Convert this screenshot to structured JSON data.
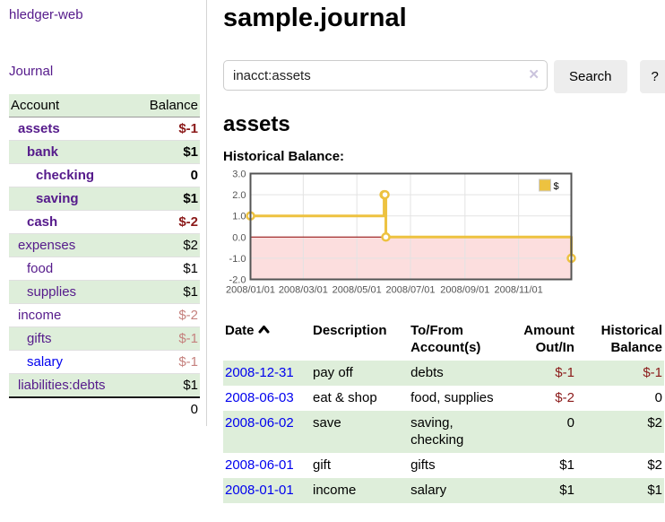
{
  "app": {
    "title": "hledger-web"
  },
  "colors": {
    "link_purple": "#551a8b",
    "link_blue": "#0000ee",
    "negative": "#8b1a1a",
    "muted_negative": "#c5817e",
    "row_stripe_green": "#deeeda"
  },
  "sidebar": {
    "nav": {
      "journal_label": "Journal"
    },
    "accounts": {
      "headers": {
        "account": "Account",
        "balance": "Balance"
      },
      "rows": [
        {
          "name": "assets",
          "level": 0,
          "balance": "$-1"
        },
        {
          "name": "bank",
          "level": 1,
          "balance": "$1"
        },
        {
          "name": "checking",
          "level": 2,
          "balance": "0"
        },
        {
          "name": "saving",
          "level": 2,
          "balance": "$1"
        },
        {
          "name": "cash",
          "level": 1,
          "balance": "$-2"
        },
        {
          "name": "expenses",
          "level": 0,
          "balance": "$2"
        },
        {
          "name": "food",
          "level": 1,
          "balance": "$1"
        },
        {
          "name": "supplies",
          "level": 1,
          "balance": "$1"
        },
        {
          "name": "income",
          "level": 0,
          "balance": "$-2"
        },
        {
          "name": "gifts",
          "level": 1,
          "balance": "$-1"
        },
        {
          "name": "salary",
          "level": 1,
          "balance": "$-1"
        },
        {
          "name": "liabilities:debts",
          "level": 0,
          "balance": "$1"
        }
      ],
      "total": "0"
    }
  },
  "main": {
    "title": "sample.journal",
    "search": {
      "value": "inacct:assets",
      "clear_icon": "✕",
      "button_label": "Search",
      "help_label": "?"
    },
    "account_heading": "assets"
  },
  "chart_data": {
    "type": "line",
    "title": "Historical Balance:",
    "steps": true,
    "series": [
      {
        "name": "$",
        "points": [
          {
            "date": "2008-01-01",
            "value": 1
          },
          {
            "date": "2008-06-01",
            "value": 2
          },
          {
            "date": "2008-06-02",
            "value": 2
          },
          {
            "date": "2008-06-03",
            "value": 0
          },
          {
            "date": "2008-12-31",
            "value": -1
          }
        ]
      }
    ],
    "x_range": [
      "2008-01-01",
      "2008-12-31"
    ],
    "ylim": [
      -2,
      3
    ],
    "yticks": [
      3.0,
      2.0,
      1.0,
      0.0,
      -1.0,
      -2.0
    ],
    "xticks": [
      {
        "date": "2008-01-01",
        "label": "2008/01/01"
      },
      {
        "date": "2008-03-01",
        "label": "2008/03/01"
      },
      {
        "date": "2008-05-01",
        "label": "2008/05/01"
      },
      {
        "date": "2008-07-01",
        "label": "2008/07/01"
      },
      {
        "date": "2008-09-01",
        "label": "2008/09/01"
      },
      {
        "date": "2008-11-01",
        "label": "2008/11/01"
      }
    ],
    "legend_position": "top-right",
    "grid": true,
    "colors": {
      "line": "#edc240",
      "below_zero_fill": "#fcdede",
      "zero_line": "#8b0000",
      "grid": "#e3e3e3",
      "border": "#545454"
    }
  },
  "register": {
    "headers": {
      "date": "Date",
      "description": "Description",
      "accounts": "To/From Account(s)",
      "amount": "Amount Out/In",
      "balance": "Historical Balance"
    },
    "rows": [
      {
        "date": "2008-12-31",
        "description": "pay off",
        "accounts": "debts",
        "amount": "$-1",
        "balance": "$-1"
      },
      {
        "date": "2008-06-03",
        "description": "eat & shop",
        "accounts": "food, supplies",
        "amount": "$-2",
        "balance": "0"
      },
      {
        "date": "2008-06-02",
        "description": "save",
        "accounts": "saving, checking",
        "amount": "0",
        "balance": "$2"
      },
      {
        "date": "2008-06-01",
        "description": "gift",
        "accounts": "gifts",
        "amount": "$1",
        "balance": "$2"
      },
      {
        "date": "2008-01-01",
        "description": "income",
        "accounts": "salary",
        "amount": "$1",
        "balance": "$1"
      }
    ]
  }
}
